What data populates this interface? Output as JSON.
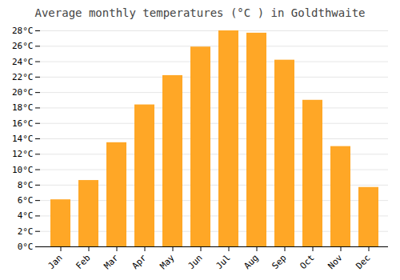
{
  "chart_data": {
    "type": "bar",
    "title": "Average monthly temperatures (°C ) in Goldthwaite",
    "categories": [
      "Jan",
      "Feb",
      "Mar",
      "Apr",
      "May",
      "Jun",
      "Jul",
      "Aug",
      "Sep",
      "Oct",
      "Nov",
      "Dec"
    ],
    "values": [
      6.1,
      8.6,
      13.5,
      18.4,
      22.2,
      25.9,
      28.0,
      27.7,
      24.2,
      19.0,
      13.0,
      7.7
    ],
    "color": "#FFA726",
    "ylim": [
      0,
      28
    ],
    "yticks": [
      {
        "value": 0,
        "label": "0°C"
      },
      {
        "value": 2,
        "label": "2°C"
      },
      {
        "value": 4,
        "label": "4°C"
      },
      {
        "value": 6,
        "label": "6°C"
      },
      {
        "value": 8,
        "label": "8°C"
      },
      {
        "value": 10,
        "label": "10°C"
      },
      {
        "value": 12,
        "label": "12°C"
      },
      {
        "value": 14,
        "label": "14°C"
      },
      {
        "value": 16,
        "label": "16°C"
      },
      {
        "value": 18,
        "label": "18°C"
      },
      {
        "value": 20,
        "label": "20°C"
      },
      {
        "value": 22,
        "label": "22°C"
      },
      {
        "value": 24,
        "label": "24°C"
      },
      {
        "value": 26,
        "label": "26°C"
      },
      {
        "value": 28,
        "label": "28°C"
      }
    ],
    "grid": true
  }
}
